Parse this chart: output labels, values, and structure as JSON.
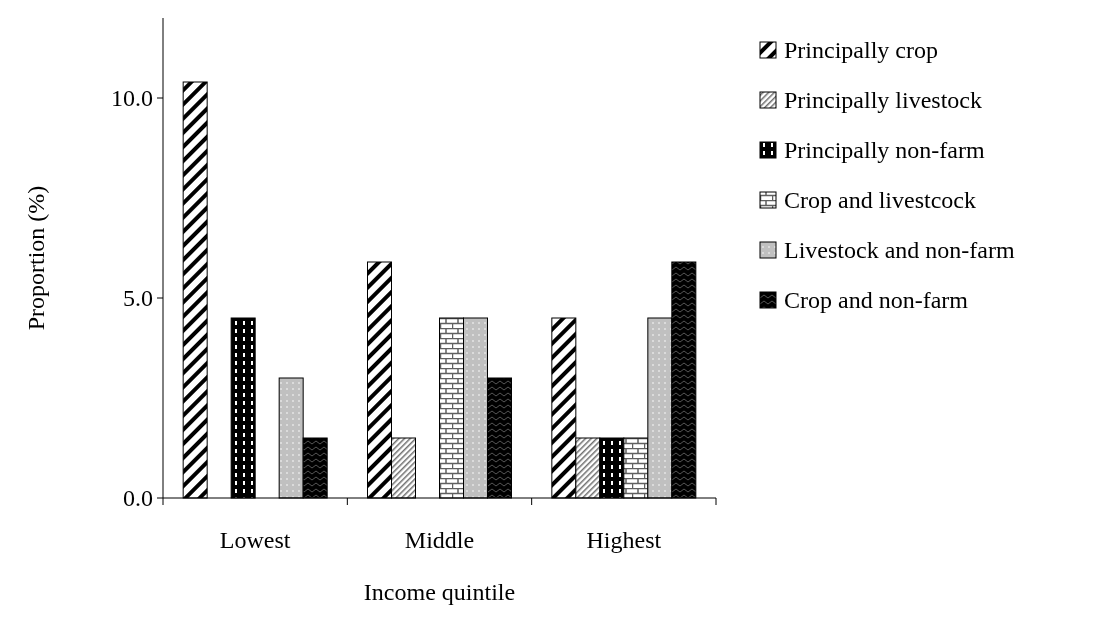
{
  "chart_data": {
    "type": "bar",
    "xlabel": "Income quintile",
    "ylabel": "Proportion (%)",
    "categories": [
      "Lowest",
      "Middle",
      "Highest"
    ],
    "ylim": [
      0,
      12
    ],
    "yticks": [
      {
        "value": 0,
        "label": "0.0"
      },
      {
        "value": 5,
        "label": "5.0"
      },
      {
        "value": 10,
        "label": "10.0"
      }
    ],
    "grid": false,
    "legend": "right",
    "series": [
      {
        "name": "Principally crop",
        "color": "#000000",
        "values": [
          10.4,
          5.9,
          4.5
        ]
      },
      {
        "name": "Principally livestock",
        "color": "#000000",
        "values": [
          0,
          1.5,
          1.5
        ]
      },
      {
        "name": "Principally non-farm",
        "color": "#000000",
        "values": [
          4.5,
          0,
          1.5
        ]
      },
      {
        "name": "Crop and livestcock",
        "color": "#000000",
        "values": [
          0,
          4.5,
          1.5
        ]
      },
      {
        "name": "Livestock and non-farm",
        "color": "#000000",
        "values": [
          3.0,
          4.5,
          4.5
        ]
      },
      {
        "name": "Crop and non-farm",
        "color": "#000000",
        "values": [
          1.5,
          3.0,
          5.9
        ]
      }
    ]
  }
}
